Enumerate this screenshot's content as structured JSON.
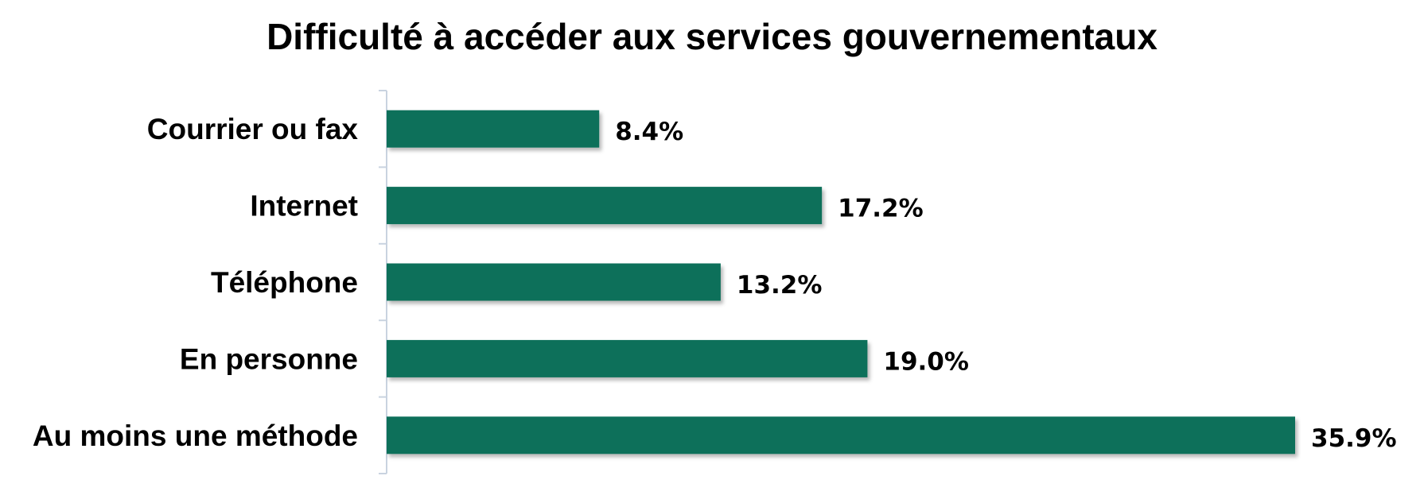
{
  "chart_data": {
    "type": "bar",
    "orientation": "horizontal",
    "title": "Difficulté à accéder aux services gouvernementaux",
    "xlabel": "",
    "ylabel": "",
    "categories": [
      "Courrier ou fax",
      "Internet",
      "Téléphone",
      "En personne",
      "Au moins une méthode"
    ],
    "values": [
      8.4,
      17.2,
      13.2,
      19.0,
      35.9
    ],
    "value_labels": [
      "8.4%",
      "17.2%",
      "13.2%",
      "19.0%",
      "35.9%"
    ],
    "unit": "%",
    "xlim": [
      0,
      35.9
    ],
    "grid": false,
    "legend": "none",
    "colors": {
      "bar": "#0e6f5a",
      "axis": "#c9d3e0",
      "text": "#000000"
    }
  }
}
